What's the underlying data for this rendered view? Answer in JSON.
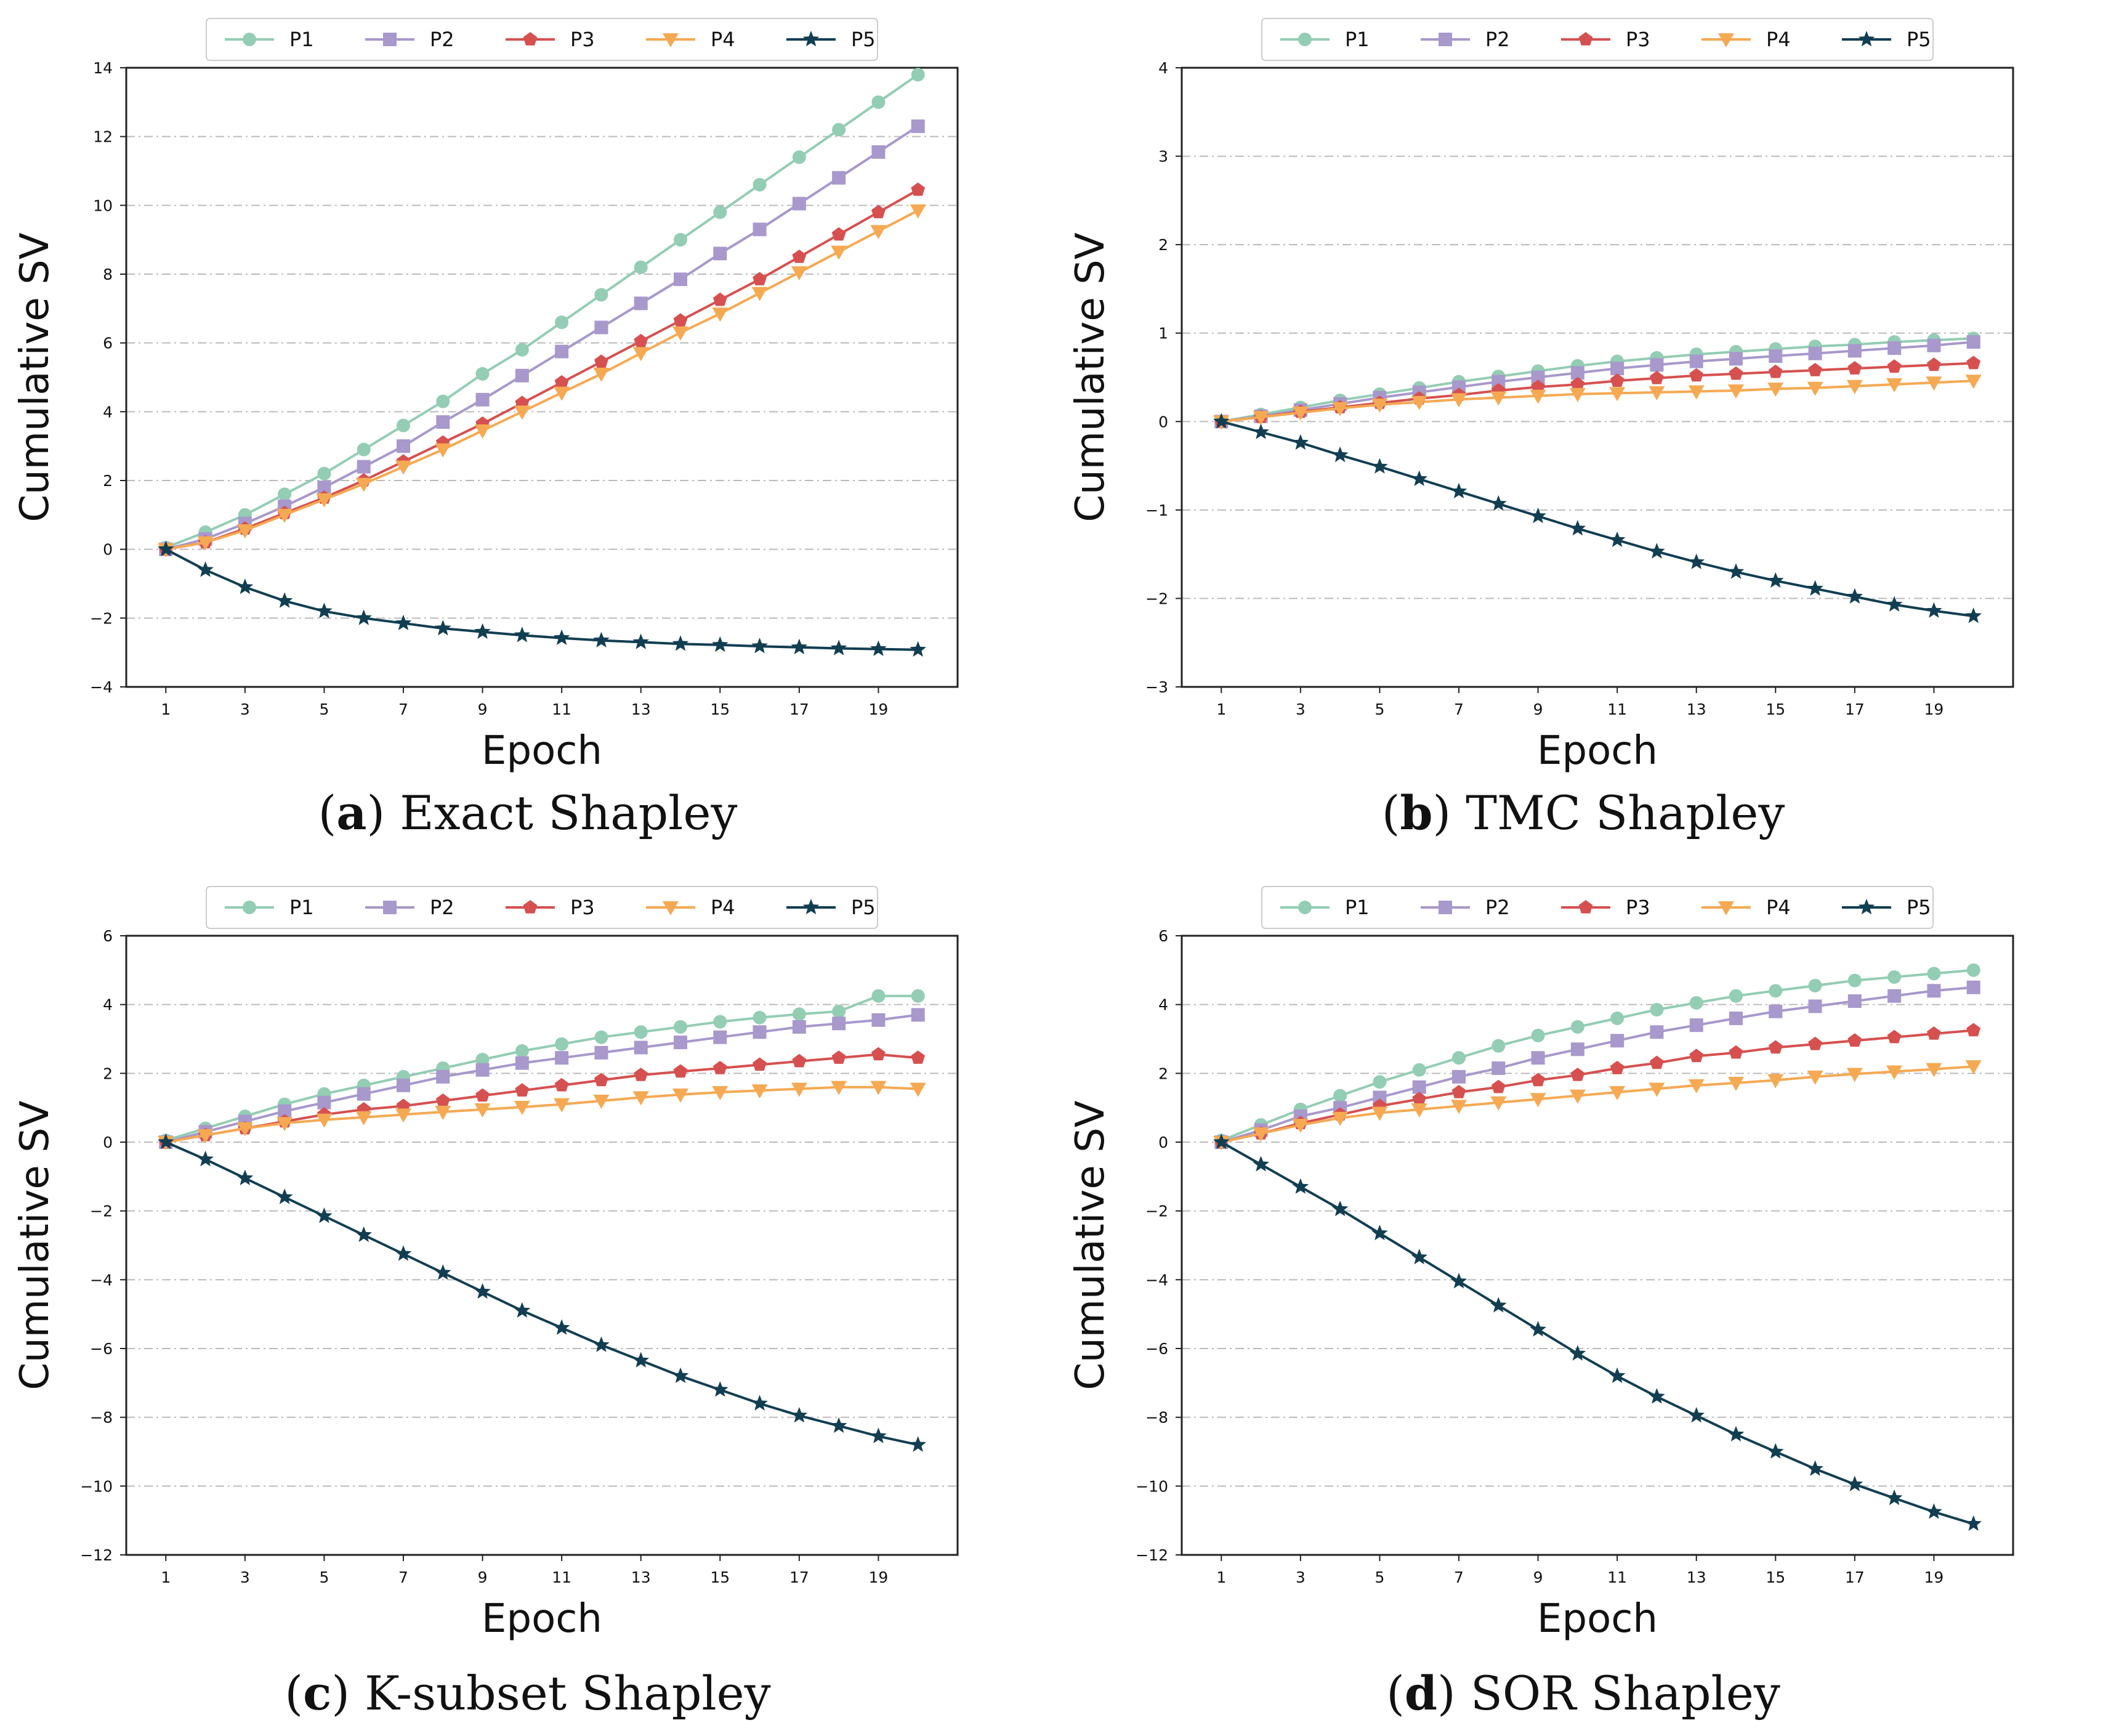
{
  "figure": {
    "caption_parens": [
      "(",
      ")"
    ]
  },
  "styles": {
    "P1": {
      "color": "#93cdb4",
      "marker": "circle"
    },
    "P2": {
      "color": "#a898cc",
      "marker": "square"
    },
    "P3": {
      "color": "#d65050",
      "marker": "pentagon"
    },
    "P4": {
      "color": "#f5a953",
      "marker": "triangle-down"
    },
    "P5": {
      "color": "#123e52",
      "marker": "star"
    },
    "grid_color": "#bbbbbb"
  },
  "chart_data": [
    {
      "type": "line",
      "id": "a",
      "letter": "a",
      "caption": "Exact Shapley",
      "xlabel": "Epoch",
      "ylabel": "Cumulative SV",
      "legend_position": "top-center",
      "grid": "horizontal-dashed",
      "xlim": [
        0,
        21
      ],
      "ylim": [
        -4,
        14
      ],
      "xticks": [
        1,
        3,
        5,
        7,
        9,
        11,
        13,
        15,
        17,
        19
      ],
      "yticks": [
        -4,
        -2,
        0,
        2,
        4,
        6,
        8,
        10,
        12,
        14
      ],
      "x": [
        1,
        2,
        3,
        4,
        5,
        6,
        7,
        8,
        9,
        10,
        11,
        12,
        13,
        14,
        15,
        16,
        17,
        18,
        19,
        20
      ],
      "series": [
        {
          "name": "P1",
          "values": [
            0.05,
            0.5,
            1.0,
            1.6,
            2.2,
            2.9,
            3.6,
            4.3,
            5.1,
            5.8,
            6.6,
            7.4,
            8.2,
            9.0,
            9.8,
            10.6,
            11.4,
            12.2,
            13.0,
            13.8
          ]
        },
        {
          "name": "P2",
          "values": [
            0.0,
            0.3,
            0.75,
            1.25,
            1.8,
            2.4,
            3.0,
            3.7,
            4.35,
            5.05,
            5.75,
            6.45,
            7.15,
            7.85,
            8.6,
            9.3,
            10.05,
            10.8,
            11.55,
            12.3
          ]
        },
        {
          "name": "P3",
          "values": [
            0.0,
            0.2,
            0.6,
            1.05,
            1.5,
            2.0,
            2.55,
            3.1,
            3.65,
            4.25,
            4.85,
            5.45,
            6.05,
            6.65,
            7.25,
            7.85,
            8.5,
            9.15,
            9.8,
            10.45
          ]
        },
        {
          "name": "P4",
          "values": [
            0.0,
            0.2,
            0.55,
            1.0,
            1.45,
            1.9,
            2.4,
            2.9,
            3.45,
            4.0,
            4.55,
            5.1,
            5.7,
            6.3,
            6.85,
            7.45,
            8.05,
            8.65,
            9.25,
            9.85
          ]
        },
        {
          "name": "P5",
          "values": [
            0.0,
            -0.6,
            -1.1,
            -1.5,
            -1.8,
            -2.0,
            -2.15,
            -2.3,
            -2.4,
            -2.5,
            -2.58,
            -2.65,
            -2.7,
            -2.75,
            -2.78,
            -2.82,
            -2.85,
            -2.88,
            -2.9,
            -2.92
          ]
        }
      ]
    },
    {
      "type": "line",
      "id": "b",
      "letter": "b",
      "caption": "TMC Shapley",
      "xlabel": "Epoch",
      "ylabel": "Cumulative SV",
      "legend_position": "top-center",
      "grid": "horizontal-dashed",
      "xlim": [
        0,
        21
      ],
      "ylim": [
        -3,
        4
      ],
      "xticks": [
        1,
        3,
        5,
        7,
        9,
        11,
        13,
        15,
        17,
        19
      ],
      "yticks": [
        -3,
        -2,
        -1,
        0,
        1,
        2,
        3,
        4
      ],
      "x": [
        1,
        2,
        3,
        4,
        5,
        6,
        7,
        8,
        9,
        10,
        11,
        12,
        13,
        14,
        15,
        16,
        17,
        18,
        19,
        20
      ],
      "series": [
        {
          "name": "P1",
          "values": [
            0.0,
            0.08,
            0.16,
            0.24,
            0.31,
            0.38,
            0.45,
            0.51,
            0.57,
            0.63,
            0.68,
            0.72,
            0.76,
            0.79,
            0.82,
            0.85,
            0.87,
            0.9,
            0.92,
            0.94
          ]
        },
        {
          "name": "P2",
          "values": [
            0.0,
            0.06,
            0.13,
            0.2,
            0.27,
            0.33,
            0.39,
            0.45,
            0.5,
            0.55,
            0.6,
            0.64,
            0.68,
            0.71,
            0.74,
            0.77,
            0.8,
            0.83,
            0.86,
            0.9
          ]
        },
        {
          "name": "P3",
          "values": [
            0.0,
            0.05,
            0.11,
            0.16,
            0.21,
            0.26,
            0.3,
            0.35,
            0.39,
            0.42,
            0.46,
            0.49,
            0.52,
            0.54,
            0.56,
            0.58,
            0.6,
            0.62,
            0.64,
            0.66
          ]
        },
        {
          "name": "P4",
          "values": [
            0.0,
            0.05,
            0.1,
            0.15,
            0.19,
            0.22,
            0.25,
            0.27,
            0.29,
            0.31,
            0.32,
            0.33,
            0.34,
            0.35,
            0.37,
            0.38,
            0.4,
            0.42,
            0.44,
            0.46
          ]
        },
        {
          "name": "P5",
          "values": [
            0.0,
            -0.12,
            -0.24,
            -0.38,
            -0.51,
            -0.65,
            -0.79,
            -0.93,
            -1.07,
            -1.21,
            -1.34,
            -1.47,
            -1.59,
            -1.7,
            -1.8,
            -1.89,
            -1.98,
            -2.07,
            -2.14,
            -2.2
          ]
        }
      ]
    },
    {
      "type": "line",
      "id": "c",
      "letter": "c",
      "caption": "K-subset Shapley",
      "xlabel": "Epoch",
      "ylabel": "Cumulative SV",
      "legend_position": "top-center",
      "grid": "horizontal-dashed",
      "xlim": [
        0,
        21
      ],
      "ylim": [
        -12,
        6
      ],
      "xticks": [
        1,
        3,
        5,
        7,
        9,
        11,
        13,
        15,
        17,
        19
      ],
      "yticks": [
        -12,
        -10,
        -8,
        -6,
        -4,
        -2,
        0,
        2,
        4,
        6
      ],
      "x": [
        1,
        2,
        3,
        4,
        5,
        6,
        7,
        8,
        9,
        10,
        11,
        12,
        13,
        14,
        15,
        16,
        17,
        18,
        19,
        20
      ],
      "series": [
        {
          "name": "P1",
          "values": [
            0.05,
            0.4,
            0.75,
            1.1,
            1.4,
            1.65,
            1.9,
            2.15,
            2.4,
            2.65,
            2.85,
            3.05,
            3.2,
            3.35,
            3.5,
            3.62,
            3.72,
            3.8,
            4.25,
            4.25
          ]
        },
        {
          "name": "P2",
          "values": [
            0.0,
            0.3,
            0.6,
            0.9,
            1.15,
            1.4,
            1.65,
            1.9,
            2.1,
            2.3,
            2.45,
            2.6,
            2.75,
            2.9,
            3.05,
            3.2,
            3.35,
            3.45,
            3.55,
            3.7
          ]
        },
        {
          "name": "P3",
          "values": [
            0.0,
            0.2,
            0.4,
            0.6,
            0.8,
            0.95,
            1.05,
            1.2,
            1.35,
            1.5,
            1.65,
            1.8,
            1.95,
            2.05,
            2.15,
            2.25,
            2.35,
            2.45,
            2.55,
            2.45
          ]
        },
        {
          "name": "P4",
          "values": [
            0.0,
            0.2,
            0.4,
            0.55,
            0.65,
            0.72,
            0.8,
            0.88,
            0.95,
            1.02,
            1.1,
            1.2,
            1.3,
            1.38,
            1.45,
            1.5,
            1.55,
            1.6,
            1.6,
            1.55
          ]
        },
        {
          "name": "P5",
          "values": [
            0.0,
            -0.5,
            -1.05,
            -1.6,
            -2.15,
            -2.7,
            -3.25,
            -3.8,
            -4.35,
            -4.9,
            -5.4,
            -5.9,
            -6.35,
            -6.8,
            -7.2,
            -7.6,
            -7.95,
            -8.25,
            -8.55,
            -8.8
          ]
        }
      ]
    },
    {
      "type": "line",
      "id": "d",
      "letter": "d",
      "caption": "SOR Shapley",
      "xlabel": "Epoch",
      "ylabel": "Cumulative SV",
      "legend_position": "top-center",
      "grid": "horizontal-dashed",
      "xlim": [
        0,
        21
      ],
      "ylim": [
        -12,
        6
      ],
      "xticks": [
        1,
        3,
        5,
        7,
        9,
        11,
        13,
        15,
        17,
        19
      ],
      "yticks": [
        -12,
        -10,
        -8,
        -6,
        -4,
        -2,
        0,
        2,
        4,
        6
      ],
      "x": [
        1,
        2,
        3,
        4,
        5,
        6,
        7,
        8,
        9,
        10,
        11,
        12,
        13,
        14,
        15,
        16,
        17,
        18,
        19,
        20
      ],
      "series": [
        {
          "name": "P1",
          "values": [
            0.05,
            0.5,
            0.95,
            1.35,
            1.75,
            2.1,
            2.45,
            2.8,
            3.1,
            3.35,
            3.6,
            3.85,
            4.05,
            4.25,
            4.4,
            4.55,
            4.7,
            4.8,
            4.9,
            5.0
          ]
        },
        {
          "name": "P2",
          "values": [
            0.0,
            0.35,
            0.75,
            1.0,
            1.3,
            1.6,
            1.9,
            2.15,
            2.45,
            2.7,
            2.95,
            3.2,
            3.4,
            3.6,
            3.8,
            3.95,
            4.1,
            4.25,
            4.4,
            4.5
          ]
        },
        {
          "name": "P3",
          "values": [
            0.0,
            0.25,
            0.55,
            0.8,
            1.05,
            1.25,
            1.45,
            1.6,
            1.8,
            1.95,
            2.15,
            2.3,
            2.5,
            2.6,
            2.75,
            2.85,
            2.95,
            3.05,
            3.15,
            3.25
          ]
        },
        {
          "name": "P4",
          "values": [
            0.0,
            0.25,
            0.5,
            0.7,
            0.85,
            0.95,
            1.05,
            1.15,
            1.25,
            1.35,
            1.45,
            1.55,
            1.65,
            1.72,
            1.8,
            1.9,
            1.98,
            2.05,
            2.12,
            2.2
          ]
        },
        {
          "name": "P5",
          "values": [
            0.0,
            -0.65,
            -1.3,
            -1.95,
            -2.65,
            -3.35,
            -4.05,
            -4.75,
            -5.45,
            -6.15,
            -6.8,
            -7.4,
            -7.95,
            -8.5,
            -9.0,
            -9.5,
            -9.95,
            -10.35,
            -10.75,
            -11.1
          ]
        }
      ]
    }
  ]
}
